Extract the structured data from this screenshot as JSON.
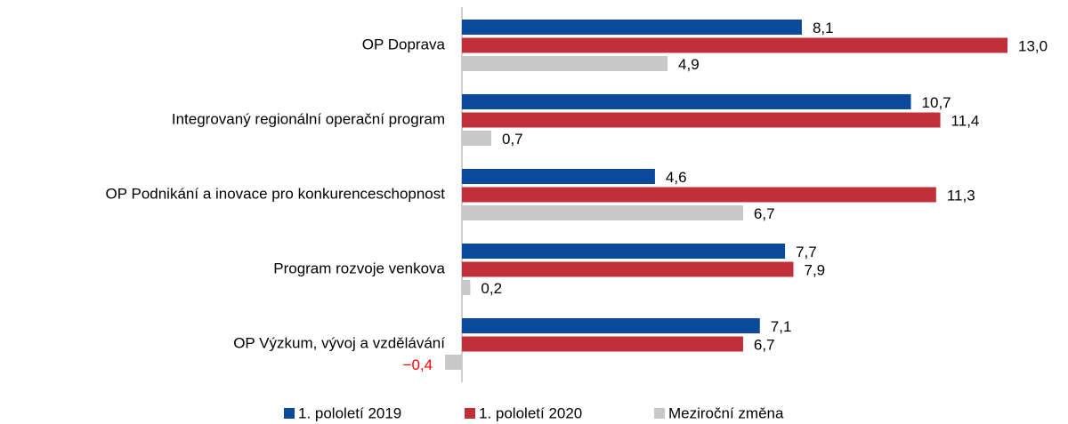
{
  "chart_data": {
    "type": "bar",
    "orientation": "horizontal",
    "categories": [
      "OP Doprava",
      "Integrovaný regionální operační program",
      "OP Podnikání a inovace pro konkurenceschopnost",
      "Program rozvoje venkova",
      "OP Výzkum, vývoj a vzdělávání"
    ],
    "series": [
      {
        "name": "1. pololetí 2019",
        "color": "#0b4a9b",
        "values": [
          8.1,
          10.7,
          4.6,
          7.7,
          7.1
        ],
        "value_labels": [
          "8,1",
          "10,7",
          "4,6",
          "7,7",
          "7,1"
        ]
      },
      {
        "name": "1. pololetí 2020",
        "color": "#c0303b",
        "values": [
          13.0,
          11.4,
          11.3,
          7.9,
          6.7
        ],
        "value_labels": [
          "13,0",
          "11,4",
          "11,3",
          "7,9",
          "6,7"
        ]
      },
      {
        "name": "Meziroční změna",
        "color": "#c8c8c8",
        "values": [
          4.9,
          0.7,
          6.7,
          0.2,
          -0.4
        ],
        "value_labels": [
          "4,9",
          "0,7",
          "6,7",
          "0,2",
          "−0,4"
        ]
      }
    ],
    "negative_label_color": "#ff0000",
    "legend": "bottom"
  }
}
